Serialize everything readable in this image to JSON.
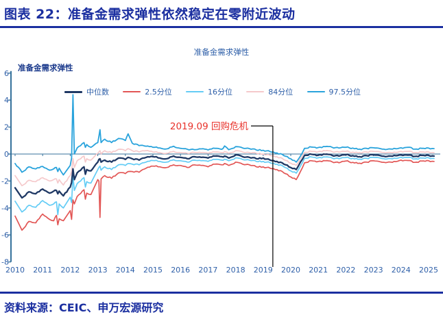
{
  "header": {
    "title": "图表 22：准备金需求弹性依然稳定在零附近波动"
  },
  "footer": {
    "source": "资料来源：CEIC、申万宏源研究"
  },
  "colors": {
    "accent": "#1B2FA0",
    "tick_label": "#2E5FA8",
    "axis_line": "#35719B",
    "annotation_text": "#E8312A",
    "annotation_line": "#000000"
  },
  "chart_data": {
    "type": "line",
    "title": "准备金需求弹性",
    "axis_title": "准备金需求弹性",
    "xlabel": "",
    "ylabel": "准备金需求弹性",
    "xlim": [
      2009.85,
      2025.5
    ],
    "ylim": [
      -8,
      6
    ],
    "ytick_step": 2,
    "yticks": [
      6,
      4,
      2,
      0,
      -2,
      -4,
      -6,
      -8
    ],
    "x_ticks": [
      2010,
      2011,
      2012,
      2013,
      2014,
      2015,
      2016,
      2017,
      2018,
      2019,
      2020,
      2021,
      2022,
      2023,
      2024,
      2025
    ],
    "grid": false,
    "zero_line": true,
    "legend_position": "top",
    "x": [
      2010,
      2010.25,
      2010.5,
      2010.75,
      2011,
      2011.25,
      2011.4,
      2011.5,
      2011.55,
      2011.6,
      2011.75,
      2012,
      2012.05,
      2012.1,
      2012.15,
      2012.25,
      2012.5,
      2012.55,
      2012.6,
      2012.75,
      2013,
      2013.04,
      2013.08,
      2013.12,
      2013.25,
      2013.5,
      2013.75,
      2014,
      2014.1,
      2014.25,
      2014.5,
      2014.75,
      2015,
      2015.25,
      2015.5,
      2015.75,
      2016,
      2016.25,
      2016.5,
      2016.75,
      2017,
      2017.25,
      2017.5,
      2017.6,
      2017.75,
      2018,
      2018.25,
      2018.5,
      2018.75,
      2019,
      2019.25,
      2019.5,
      2019.75,
      2020,
      2020.2,
      2020.35,
      2020.5,
      2020.75,
      2021,
      2021.25,
      2021.5,
      2021.75,
      2022,
      2022.25,
      2022.5,
      2022.75,
      2023,
      2023.25,
      2023.5,
      2023.75,
      2024,
      2024.25,
      2024.5,
      2024.75,
      2025,
      2025.2
    ],
    "series": [
      {
        "name": "中位数",
        "color": "#1F3864",
        "width": 2.3,
        "values": [
          -2.5,
          -3.25,
          -2.8,
          -2.95,
          -2.6,
          -2.9,
          -2.75,
          -2.7,
          -2.95,
          -2.75,
          -3.1,
          -2.45,
          -2.1,
          -1.1,
          -1.9,
          -1.4,
          -0.95,
          -1.5,
          -1.15,
          -1.25,
          -0.6,
          -0.4,
          -0.35,
          -0.6,
          -0.45,
          -0.6,
          -0.3,
          -0.4,
          -0.25,
          -0.35,
          -0.45,
          -0.25,
          -0.2,
          -0.3,
          -0.35,
          -0.15,
          -0.25,
          -0.35,
          -0.2,
          -0.25,
          -0.3,
          -0.15,
          -0.2,
          -0.15,
          -0.3,
          -0.05,
          -0.2,
          -0.25,
          -0.35,
          -0.3,
          -0.45,
          -0.55,
          -0.75,
          -1.0,
          -1.15,
          -0.6,
          -0.1,
          -0.02,
          -0.08,
          -0.02,
          -0.1,
          -0.15,
          -0.05,
          -0.12,
          -0.2,
          -0.12,
          -0.06,
          -0.12,
          -0.18,
          -0.1,
          -0.05,
          -0.08,
          -0.18,
          -0.1,
          -0.1,
          -0.15
        ]
      },
      {
        "name": "2.5分位",
        "color": "#E25554",
        "width": 1.7,
        "values": [
          -4.6,
          -5.65,
          -5.0,
          -5.1,
          -4.45,
          -4.85,
          -4.95,
          -4.55,
          -5.25,
          -4.8,
          -4.95,
          -4.2,
          -4.85,
          -3.4,
          -3.7,
          -3.15,
          -2.65,
          -3.35,
          -2.9,
          -3.0,
          -1.9,
          -2.0,
          -4.7,
          -1.85,
          -1.6,
          -1.8,
          -1.4,
          -1.45,
          -1.3,
          -1.3,
          -1.35,
          -1.05,
          -0.9,
          -0.95,
          -1.0,
          -0.8,
          -0.85,
          -1.0,
          -0.8,
          -0.85,
          -0.95,
          -0.75,
          -0.8,
          -0.7,
          -0.85,
          -0.6,
          -0.75,
          -0.8,
          -0.95,
          -0.95,
          -1.05,
          -1.15,
          -1.4,
          -1.7,
          -1.9,
          -1.3,
          -0.65,
          -0.5,
          -0.55,
          -0.5,
          -0.58,
          -0.65,
          -0.52,
          -0.62,
          -0.68,
          -0.6,
          -0.5,
          -0.58,
          -0.62,
          -0.55,
          -0.45,
          -0.48,
          -0.62,
          -0.52,
          -0.5,
          -0.55
        ]
      },
      {
        "name": "16分位",
        "color": "#63CCF5",
        "width": 1.7,
        "values": [
          -3.5,
          -4.3,
          -3.8,
          -3.95,
          -3.45,
          -3.8,
          -3.7,
          -3.55,
          -4.5,
          -3.7,
          -4.0,
          -3.2,
          -3.6,
          -1.6,
          -2.7,
          -2.2,
          -1.75,
          -2.45,
          -2.05,
          -2.15,
          -1.15,
          -1.0,
          -0.9,
          -1.2,
          -0.95,
          -1.15,
          -0.8,
          -0.85,
          -0.7,
          -0.75,
          -0.8,
          -0.6,
          -0.48,
          -0.55,
          -0.6,
          -0.42,
          -0.5,
          -0.6,
          -0.45,
          -0.5,
          -0.55,
          -0.4,
          -0.45,
          -0.38,
          -0.5,
          -0.28,
          -0.4,
          -0.45,
          -0.55,
          -0.55,
          -0.65,
          -0.75,
          -0.95,
          -1.25,
          -1.42,
          -0.9,
          -0.32,
          -0.22,
          -0.28,
          -0.22,
          -0.3,
          -0.35,
          -0.26,
          -0.32,
          -0.38,
          -0.32,
          -0.25,
          -0.3,
          -0.36,
          -0.3,
          -0.24,
          -0.26,
          -0.36,
          -0.3,
          -0.28,
          -0.33
        ]
      },
      {
        "name": "84分位",
        "color": "#F5C9CB",
        "width": 1.7,
        "values": [
          -1.6,
          -2.35,
          -1.95,
          -2.05,
          -1.75,
          -2.0,
          -1.9,
          -1.85,
          -2.15,
          -1.9,
          -2.3,
          -1.6,
          -1.3,
          -0.35,
          -1.0,
          -0.5,
          -0.15,
          -0.6,
          -0.35,
          -0.45,
          0.05,
          0.15,
          0.25,
          0.0,
          0.25,
          0.1,
          0.35,
          0.25,
          0.4,
          0.25,
          0.15,
          0.25,
          0.15,
          0.1,
          0.05,
          0.2,
          0.1,
          0.05,
          0.12,
          0.1,
          0.05,
          0.15,
          0.1,
          0.18,
          0.05,
          0.25,
          0.15,
          0.1,
          0.05,
          0.0,
          -0.1,
          -0.2,
          -0.42,
          -0.68,
          -0.85,
          -0.35,
          0.12,
          0.2,
          0.18,
          0.24,
          0.18,
          0.14,
          0.2,
          0.14,
          0.1,
          0.15,
          0.2,
          0.15,
          0.1,
          0.14,
          0.2,
          0.2,
          0.1,
          0.15,
          0.15,
          0.1
        ]
      },
      {
        "name": "97.5分位",
        "color": "#29A3DC",
        "width": 1.8,
        "values": [
          -0.7,
          -1.35,
          -0.95,
          -1.1,
          -0.92,
          -1.2,
          -1.1,
          -1.0,
          -1.3,
          -1.05,
          -1.55,
          -0.85,
          -0.3,
          4.4,
          0.0,
          0.45,
          0.85,
          0.5,
          0.7,
          0.5,
          0.85,
          1.3,
          1.8,
          0.85,
          1.1,
          0.85,
          1.15,
          1.0,
          1.5,
          0.8,
          0.62,
          0.58,
          0.5,
          0.45,
          0.38,
          0.58,
          0.42,
          0.35,
          0.32,
          0.38,
          0.3,
          0.42,
          0.35,
          0.6,
          0.32,
          0.55,
          0.45,
          0.4,
          0.3,
          0.28,
          0.18,
          0.08,
          -0.12,
          -0.35,
          -0.6,
          -0.15,
          0.42,
          0.52,
          0.48,
          0.55,
          0.5,
          0.44,
          0.5,
          0.44,
          0.36,
          0.42,
          0.46,
          0.4,
          0.35,
          0.42,
          0.46,
          0.5,
          0.36,
          0.42,
          0.44,
          0.4
        ]
      }
    ],
    "draw_order": [
      3,
      2,
      1,
      4,
      0
    ],
    "annotation": {
      "label": "2019.09 回购危机",
      "x": 2019.35
    }
  }
}
